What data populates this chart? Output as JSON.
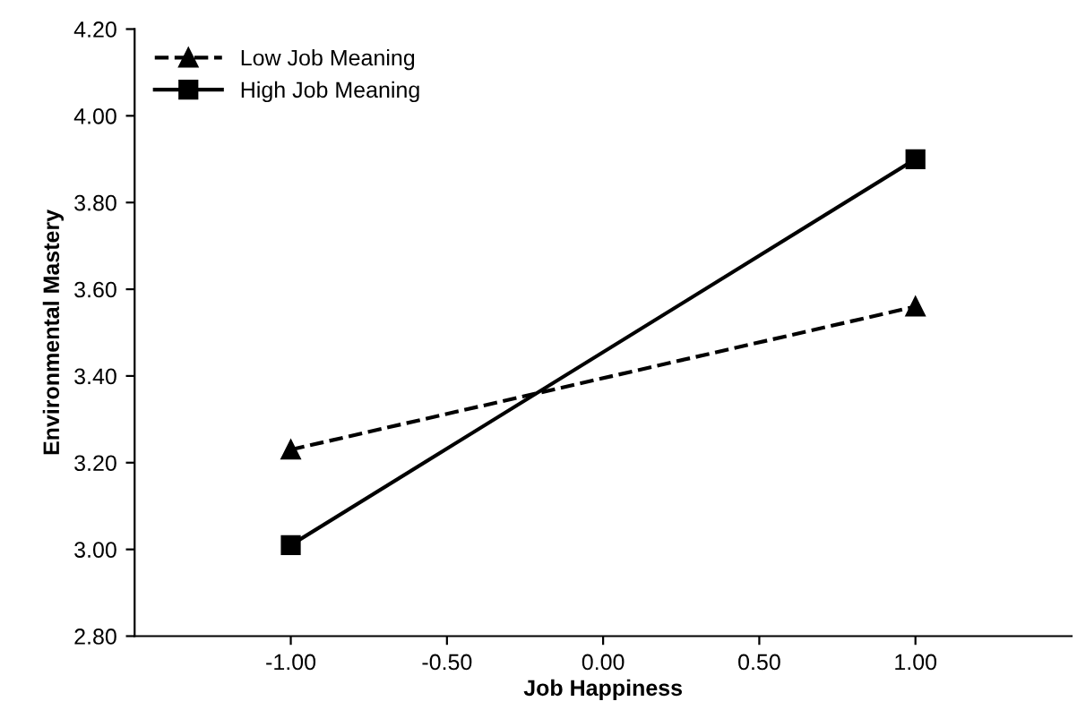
{
  "chart_data": {
    "type": "line",
    "xlabel": "Job Happiness",
    "ylabel": "Environmental Mastery",
    "x": [
      -1,
      1
    ],
    "series": [
      {
        "name": "Low Job Meaning",
        "color": "#000000",
        "values": [
          3.23,
          3.56
        ],
        "marker": "triangle",
        "line_style": "dashed"
      },
      {
        "name": "High Job Meaning",
        "color": "#000000",
        "values": [
          3.01,
          3.9
        ],
        "marker": "square",
        "line_style": "solid"
      }
    ],
    "xlim": [
      -1.5,
      1.5
    ],
    "xticks": [
      {
        "value": -1,
        "label": "-1.00"
      },
      {
        "value": -0.5,
        "label": "-0.50"
      },
      {
        "value": 0,
        "label": "0.00"
      },
      {
        "value": 0.5,
        "label": "0.50"
      },
      {
        "value": 1,
        "label": "1.00"
      }
    ],
    "ylim": [
      2.8,
      4.2
    ],
    "yticks": [
      {
        "value": 2.8,
        "label": "2.80"
      },
      {
        "value": 3.0,
        "label": "3.00"
      },
      {
        "value": 3.2,
        "label": "3.20"
      },
      {
        "value": 3.4,
        "label": "3.40"
      },
      {
        "value": 3.6,
        "label": "3.60"
      },
      {
        "value": 3.8,
        "label": "3.80"
      },
      {
        "value": 4.0,
        "label": "4.00"
      },
      {
        "value": 4.2,
        "label": "4.20"
      }
    ],
    "grid": false,
    "legend": "top left"
  }
}
